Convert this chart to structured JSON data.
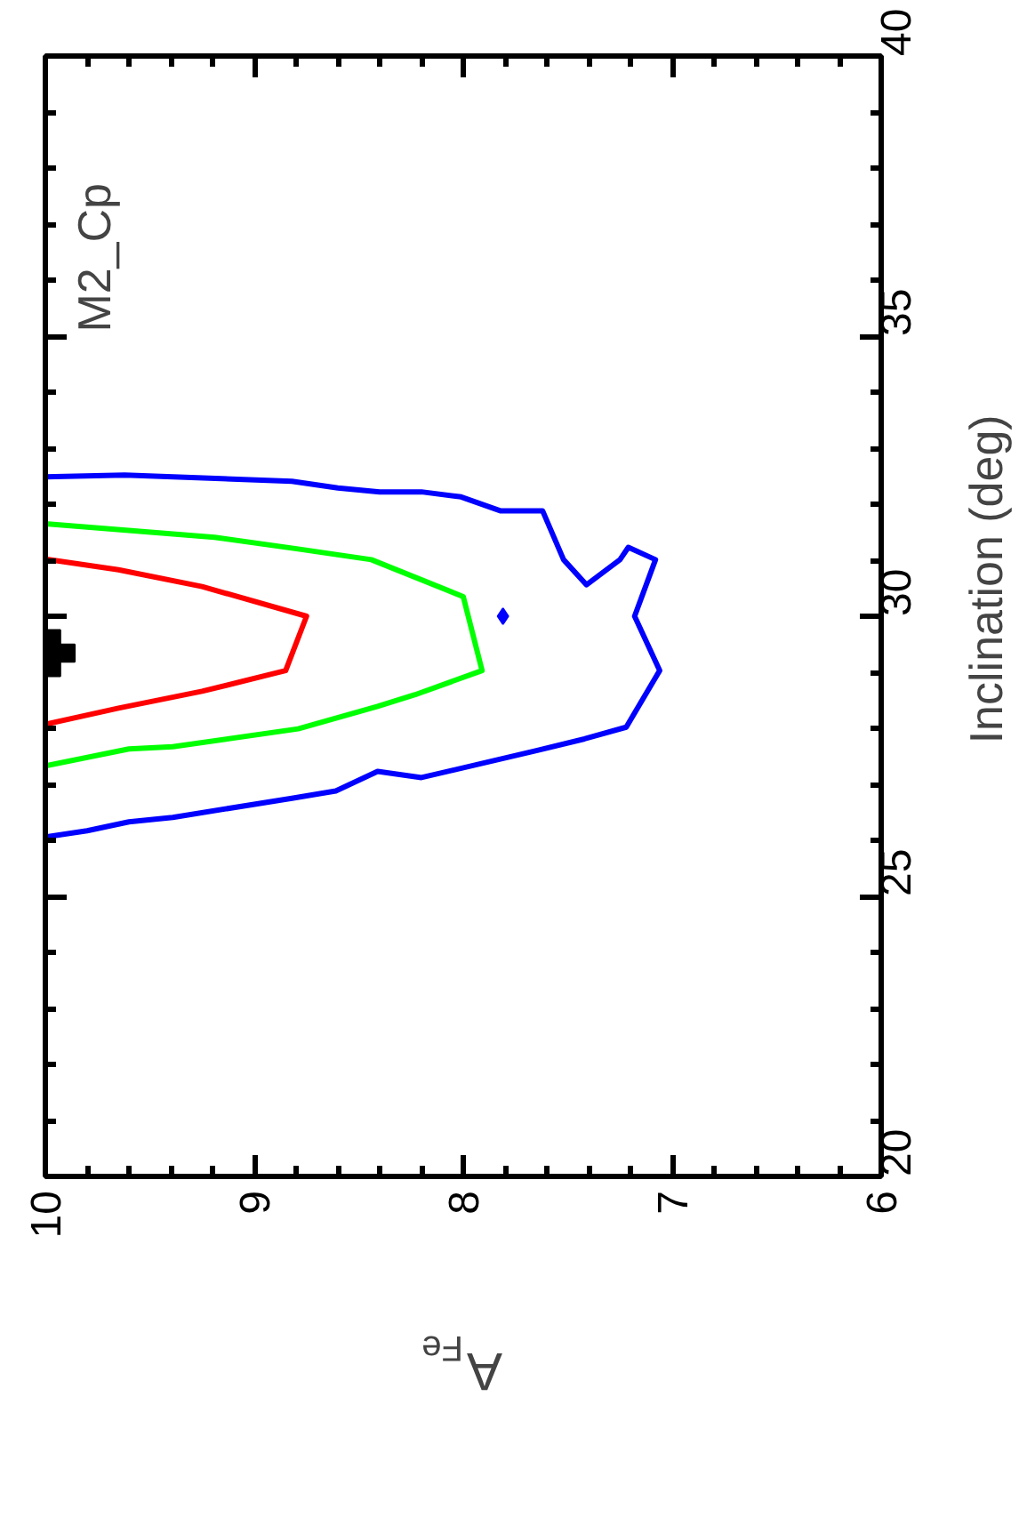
{
  "chart_data": {
    "type": "line",
    "xlabel": "A$_{Fe}$",
    "ylabel": "Inclination (deg)",
    "xlim": [
      10,
      6
    ],
    "ylim": [
      20,
      40
    ],
    "xticks": [
      10,
      9,
      8,
      7,
      6
    ],
    "yticks": [
      20,
      25,
      30,
      35,
      40
    ],
    "grid": false,
    "line_style": "solid",
    "annotations": [
      "M2_Cp"
    ],
    "series": [
      {
        "color": "#0000ff",
        "x": [
          10.0,
          9.62,
          8.82,
          8.6,
          8.4,
          8.2,
          8.01,
          7.82,
          7.62,
          7.52,
          7.41,
          7.25,
          7.21,
          7.08,
          7.18,
          7.06,
          7.22,
          7.42,
          7.65,
          8.2,
          8.41,
          8.61,
          8.82,
          9.39,
          9.6,
          9.8,
          10.0
        ],
        "values": [
          32.49,
          32.52,
          32.41,
          32.29,
          32.22,
          32.22,
          32.13,
          31.88,
          31.88,
          31.01,
          30.56,
          31.01,
          31.23,
          31.01,
          30.0,
          29.03,
          28.02,
          27.81,
          27.6,
          27.12,
          27.23,
          26.88,
          26.75,
          26.41,
          26.33,
          26.17,
          26.06
        ]
      },
      {
        "color": "#00ff00",
        "x": [
          10.0,
          9.19,
          8.79,
          8.44,
          8.0,
          7.91,
          8.23,
          8.41,
          8.79,
          9.39,
          9.6,
          10.0
        ],
        "values": [
          31.65,
          31.41,
          31.2,
          31.01,
          30.35,
          29.03,
          28.6,
          28.39,
          27.99,
          27.67,
          27.63,
          27.33
        ]
      },
      {
        "color": "#ff0000",
        "x": [
          10.0,
          9.65,
          9.25,
          8.75,
          8.85,
          9.25,
          9.65,
          10.0
        ],
        "values": [
          31.02,
          30.83,
          30.53,
          30.0,
          29.03,
          28.66,
          28.36,
          28.07
        ]
      },
      {
        "type": "scatter",
        "marker": "diamond",
        "color": "#0000ff",
        "x": [
          7.81
        ],
        "values": [
          30.0
        ]
      },
      {
        "type": "scatter",
        "marker": "cross",
        "color": "#000000",
        "x": [
          9.97
        ],
        "values": [
          29.34
        ]
      }
    ]
  }
}
